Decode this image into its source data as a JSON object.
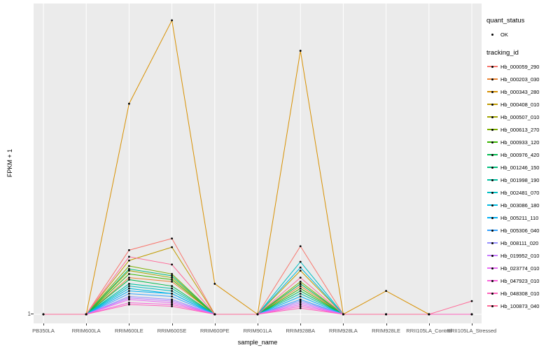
{
  "axes": {
    "x_title": "sample_name",
    "y_title": "FPKM + 1",
    "y_tick": "1"
  },
  "legend": {
    "quant_status_title": "quant_status",
    "quant_status_items": [
      {
        "label": "OK",
        "marker": "point"
      }
    ],
    "tracking_id_title": "tracking_id"
  },
  "chart_data": {
    "type": "line",
    "title": "",
    "xlabel": "sample_name",
    "ylabel": "FPKM + 1",
    "yscale": "log10",
    "ylim": [
      1,
      1000
    ],
    "ytick_labels": [
      "1"
    ],
    "grid": "vertical-white-on-gray",
    "legend_position": "right",
    "point_marker": "black-dot",
    "colors": {
      "panel_bg": "#EBEBEB",
      "grid": "#FFFFFF",
      "point": "#000000"
    },
    "categories": [
      "PB350LA",
      "RRIM600LA",
      "RRIM600LE",
      "RRIM600SE",
      "RRIM600PE",
      "RRIM901LA",
      "RRIM928BA",
      "RRIM928LA",
      "RRIM928LE",
      "RRII105LA_Control",
      "RRII105LA_Stressed"
    ],
    "series": [
      {
        "name": "Hb_000059_290",
        "color": "#F8766D",
        "values": [
          1,
          1,
          4.3,
          5.6,
          1,
          1,
          4.7,
          1,
          1,
          1,
          1
        ]
      },
      {
        "name": "Hb_000203_030",
        "color": "#EA8331",
        "values": [
          1,
          1,
          2.3,
          2.1,
          1,
          1,
          1.9,
          1,
          1,
          1,
          1
        ]
      },
      {
        "name": "Hb_000343_280",
        "color": "#D89000",
        "values": [
          1,
          1,
          120,
          800,
          2.0,
          1,
          400,
          1,
          1.7,
          1,
          1
        ]
      },
      {
        "name": "Hb_000408_010",
        "color": "#C09B00",
        "values": [
          1,
          1,
          3.4,
          4.6,
          1,
          1,
          2.7,
          1,
          1,
          1,
          1
        ]
      },
      {
        "name": "Hb_000507_010",
        "color": "#A3A500",
        "values": [
          1,
          1,
          2.7,
          2.3,
          1,
          1,
          2.0,
          1,
          1,
          1,
          1
        ]
      },
      {
        "name": "Hb_000613_270",
        "color": "#7CAE00",
        "values": [
          1,
          1,
          3.0,
          2.5,
          1,
          1,
          2.1,
          1,
          1,
          1,
          1
        ]
      },
      {
        "name": "Hb_000933_120",
        "color": "#39B600",
        "values": [
          1,
          1,
          2.5,
          2.2,
          1,
          1,
          1.8,
          1,
          1,
          1,
          1
        ]
      },
      {
        "name": "Hb_000976_420",
        "color": "#00BB4E",
        "values": [
          1,
          1,
          2.2,
          1.9,
          1,
          1,
          1.7,
          1,
          1,
          1,
          1
        ]
      },
      {
        "name": "Hb_001246_150",
        "color": "#00BF7D",
        "values": [
          1,
          1,
          2.8,
          2.4,
          1,
          1,
          2.0,
          1,
          1,
          1,
          1
        ]
      },
      {
        "name": "Hb_001998_190",
        "color": "#00C1A3",
        "values": [
          1,
          1,
          2.0,
          1.8,
          1,
          1,
          1.6,
          1,
          1,
          1,
          1
        ]
      },
      {
        "name": "Hb_002481_070",
        "color": "#00BFC4",
        "values": [
          1,
          1,
          1.9,
          1.7,
          1,
          1,
          3.3,
          1,
          1,
          1,
          1
        ]
      },
      {
        "name": "Hb_003086_180",
        "color": "#00BAE0",
        "values": [
          1,
          1,
          1.8,
          1.6,
          1,
          1,
          2.9,
          1,
          1,
          1,
          1
        ]
      },
      {
        "name": "Hb_005211_110",
        "color": "#00B0F6",
        "values": [
          1,
          1,
          1.7,
          1.6,
          1,
          1,
          1.5,
          1,
          1,
          1,
          1
        ]
      },
      {
        "name": "Hb_005306_040",
        "color": "#35A2FF",
        "values": [
          1,
          1,
          1.6,
          1.5,
          1,
          1,
          1.4,
          1,
          1,
          1,
          1
        ]
      },
      {
        "name": "Hb_008111_020",
        "color": "#9590FF",
        "values": [
          1,
          1,
          1.5,
          1.4,
          1,
          1,
          1.35,
          1,
          1,
          1,
          1
        ]
      },
      {
        "name": "Hb_019952_010",
        "color": "#C77CFF",
        "values": [
          1,
          1,
          1.45,
          1.35,
          1,
          1,
          1.3,
          1,
          1,
          1,
          1
        ]
      },
      {
        "name": "Hb_023774_010",
        "color": "#E76BF3",
        "values": [
          1,
          1,
          1.4,
          1.3,
          1,
          1,
          1.25,
          1,
          1,
          1,
          1
        ]
      },
      {
        "name": "Hb_047923_010",
        "color": "#FA62DB",
        "values": [
          1,
          1,
          1.3,
          1.25,
          1,
          1,
          1.2,
          1,
          1,
          1,
          1
        ]
      },
      {
        "name": "Hb_048308_010",
        "color": "#FF62BC",
        "values": [
          1,
          1,
          1.25,
          1.2,
          1,
          1,
          1.15,
          1,
          1,
          1,
          1
        ]
      },
      {
        "name": "Hb_100873_040",
        "color": "#FF6A98",
        "values": [
          1,
          1,
          3.7,
          3.1,
          1,
          1,
          2.3,
          1,
          1,
          1,
          1.35
        ]
      }
    ]
  }
}
